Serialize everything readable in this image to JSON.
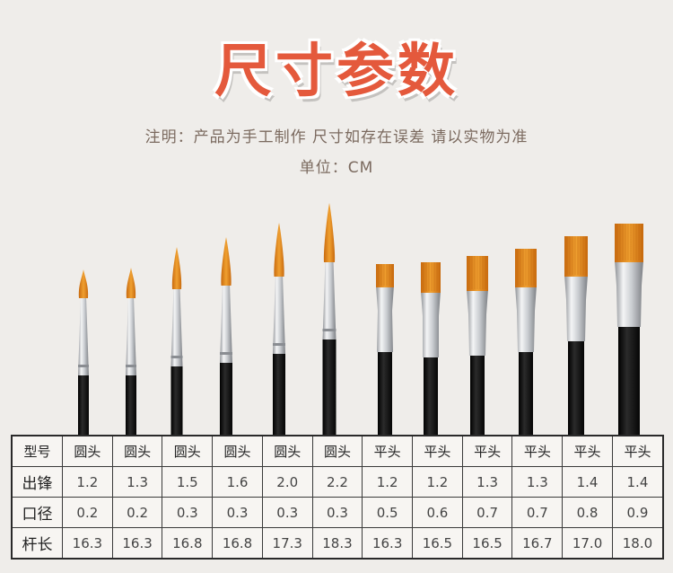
{
  "title": "尺寸参数",
  "note": "注明：产品为手工制作 尺寸如存在误差 请以实物为准",
  "unit": "单位：CM",
  "colors": {
    "title": "#e4593c",
    "bristle": "#e98a1c",
    "bristle_dark": "#c86a0e",
    "ferrule": "#d7d9dc",
    "handle": "#151515",
    "background": "#efedea"
  },
  "brushes": [
    {
      "type": "round"
    },
    {
      "type": "round"
    },
    {
      "type": "round"
    },
    {
      "type": "round"
    },
    {
      "type": "round"
    },
    {
      "type": "round"
    },
    {
      "type": "flat"
    },
    {
      "type": "flat"
    },
    {
      "type": "flat"
    },
    {
      "type": "flat"
    },
    {
      "type": "flat"
    },
    {
      "type": "flat"
    }
  ],
  "table": {
    "rows": [
      {
        "label": "型号",
        "cells": [
          "圆头",
          "圆头",
          "圆头",
          "圆头",
          "圆头",
          "圆头",
          "平头",
          "平头",
          "平头",
          "平头",
          "平头",
          "平头"
        ]
      },
      {
        "label": "出锋",
        "cells": [
          "1.2",
          "1.3",
          "1.5",
          "1.6",
          "2.0",
          "2.2",
          "1.2",
          "1.2",
          "1.3",
          "1.3",
          "1.4",
          "1.4"
        ]
      },
      {
        "label": "口径",
        "cells": [
          "0.2",
          "0.2",
          "0.3",
          "0.3",
          "0.3",
          "0.3",
          "0.5",
          "0.6",
          "0.7",
          "0.7",
          "0.8",
          "0.9"
        ]
      },
      {
        "label": "杆长",
        "cells": [
          "16.3",
          "16.3",
          "16.8",
          "16.8",
          "17.3",
          "18.3",
          "16.3",
          "16.5",
          "16.5",
          "16.7",
          "17.0",
          "18.0"
        ]
      }
    ]
  }
}
